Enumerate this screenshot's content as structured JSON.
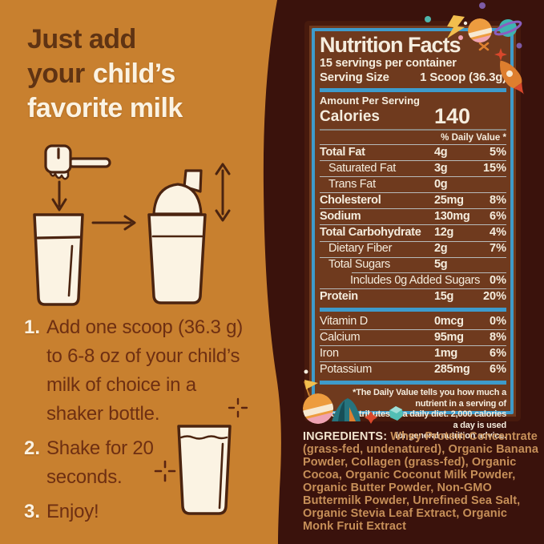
{
  "headline": {
    "line1": "Just add",
    "line2_brown": "your",
    "line2_cream": "child’s",
    "line3": "favorite milk"
  },
  "instructions": [
    {
      "num": "1.",
      "text": "Add one scoop (36.3 g)\nto 6-8 oz of your child’s\nmilk of choice in a\nshaker bottle."
    },
    {
      "num": "2.",
      "text": "Shake for 20\nseconds."
    },
    {
      "num": "3.",
      "text": "Enjoy!"
    }
  ],
  "nutrition": {
    "title": "Nutrition Facts",
    "servings_per_container": "15 servings per container",
    "serving_size_label": "Serving Size",
    "serving_size_value": "1 Scoop (36.3g)",
    "amount_per_serving": "Amount Per Serving",
    "calories_label": "Calories",
    "calories_value": "140",
    "daily_value_header": "% Daily Value *",
    "rows": [
      {
        "name": "Total Fat",
        "amount": "4g",
        "dv": "5%",
        "bold": true,
        "indent": 0
      },
      {
        "name": "Saturated Fat",
        "amount": "3g",
        "dv": "15%",
        "bold": false,
        "indent": 1
      },
      {
        "name": "Trans Fat",
        "amount": "0g",
        "dv": "",
        "bold": false,
        "indent": 1
      },
      {
        "name": "Cholesterol",
        "amount": "25mg",
        "dv": "8%",
        "bold": true,
        "indent": 0
      },
      {
        "name": "Sodium",
        "amount": "130mg",
        "dv": "6%",
        "bold": true,
        "indent": 0
      },
      {
        "name": "Total Carbohydrate",
        "amount": "12g",
        "dv": "4%",
        "bold": true,
        "indent": 0
      },
      {
        "name": "Dietary Fiber",
        "amount": "2g",
        "dv": "7%",
        "bold": false,
        "indent": 1
      },
      {
        "name": "Total Sugars",
        "amount": "5g",
        "dv": "",
        "bold": false,
        "indent": 1
      },
      {
        "name": "Includes 0g Added Sugars",
        "amount": "",
        "dv": "0%",
        "bold": false,
        "indent": 2,
        "inset_divider": true
      },
      {
        "name": "Protein",
        "amount": "15g",
        "dv": "20%",
        "bold": true,
        "indent": 0
      }
    ],
    "vitamin_rows": [
      {
        "name": "Vitamin D",
        "amount": "0mcg",
        "dv": "0%"
      },
      {
        "name": "Calcium",
        "amount": "95mg",
        "dv": "8%"
      },
      {
        "name": "Iron",
        "amount": "1mg",
        "dv": "6%"
      },
      {
        "name": "Potassium",
        "amount": "285mg",
        "dv": "6%"
      }
    ],
    "footnote": "*The Daily Value tells you how much a nutrient in a serving of\nfood contributes to a daily diet. 2,000 calories a day is used\nfor general nutrition advice."
  },
  "ingredients": {
    "label": "INGREDIENTS:",
    "text": " Whey Protein Concentrate (grass-fed, undenatured), Organic Banana Powder, Collagen (grass-fed), Organic Cocoa, Organic Coconut Milk Powder, Organic Butter Powder, Non-GMO Buttermilk Powder, Unrefined Sea Salt, Organic Stevia Leaf Extract, Organic Monk Fruit Extract"
  },
  "colors": {
    "page_background": "#3A120C",
    "panel_orange": "#C8802F",
    "headline_brown": "#5F3313",
    "cream": "#FBF3E3",
    "label_interior": "#6F3A1E",
    "label_frame": "#471A0D",
    "label_blue": "#3E9BCB",
    "ingredients_tan": "#C68F58",
    "illustration_stroke": "#4B2410"
  }
}
